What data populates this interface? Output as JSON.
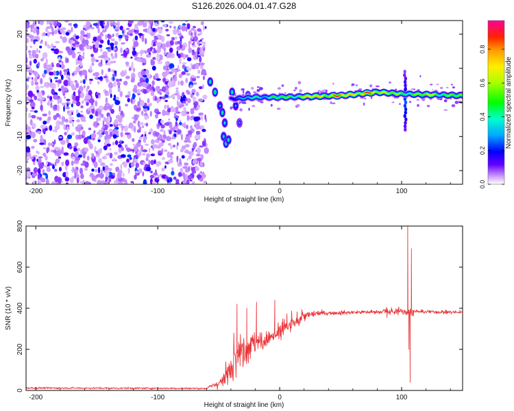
{
  "title": "S126.2026.004.01.47.G28",
  "chart_data": [
    {
      "type": "heatmap",
      "name": "spectrogram",
      "xlabel": "Height of straight line (km)",
      "ylabel": "Frequency (Hz)",
      "xlim": [
        -208,
        150
      ],
      "ylim": [
        -24,
        24
      ],
      "xticks": [
        -200,
        -100,
        0,
        100
      ],
      "yticks": [
        -20,
        -10,
        0,
        10,
        20
      ],
      "xtick_labels": [
        "-200",
        "-100",
        "0",
        "100"
      ],
      "ytick_labels": [
        "-20",
        "-10",
        "0",
        "10",
        "20"
      ],
      "colorbar": {
        "label": "Normalized spectral amplitude",
        "range": [
          0.0,
          0.97
        ],
        "ticks": [
          0.0,
          0.2,
          0.4,
          0.6,
          0.8
        ],
        "tick_labels": [
          "0.0",
          "0.2",
          "0.4",
          "0.6",
          "0.8"
        ]
      },
      "features": {
        "noise_region_x": [
          -208,
          -60
        ],
        "noise_amplitude": [
          0.05,
          0.25
        ],
        "blob_track": [
          {
            "x": -57,
            "f": 6,
            "a": 0.3
          },
          {
            "x": -53,
            "f": 3,
            "a": 0.35
          },
          {
            "x": -49,
            "f": -1,
            "a": 0.2
          },
          {
            "x": -47,
            "f": -3,
            "a": 0.3
          },
          {
            "x": -45,
            "f": -6,
            "a": 0.25
          },
          {
            "x": -46,
            "f": -10,
            "a": 0.25
          },
          {
            "x": -44,
            "f": -12,
            "a": 0.3
          },
          {
            "x": -42,
            "f": -11,
            "a": 0.28
          },
          {
            "x": -39,
            "f": 3,
            "a": 0.3
          },
          {
            "x": -36,
            "f": -1,
            "a": 0.2
          },
          {
            "x": -33,
            "f": -6,
            "a": 0.15
          },
          {
            "x": -30,
            "f": 1,
            "a": 0.45
          },
          {
            "x": -26,
            "f": 2,
            "a": 0.4
          }
        ],
        "main_line": [
          {
            "x": -40,
            "f": 1.0
          },
          {
            "x": -20,
            "f": 1.5
          },
          {
            "x": 0,
            "f": 1.5
          },
          {
            "x": 50,
            "f": 2.0
          },
          {
            "x": 80,
            "f": 3.0
          },
          {
            "x": 100,
            "f": 2.5
          },
          {
            "x": 150,
            "f": 2.0
          }
        ],
        "main_line_amplitude": [
          {
            "x": -40,
            "a": 0.3
          },
          {
            "x": -10,
            "a": 0.5
          },
          {
            "x": 10,
            "a": 0.6
          },
          {
            "x": 30,
            "a": 0.85
          },
          {
            "x": 60,
            "a": 0.9
          },
          {
            "x": 90,
            "a": 0.8
          },
          {
            "x": 100,
            "a": 0.5
          },
          {
            "x": 110,
            "a": 0.7
          },
          {
            "x": 150,
            "a": 0.6
          }
        ],
        "vertical_spike": {
          "x": 103,
          "f_range": [
            -8,
            9
          ],
          "a": 0.25
        }
      }
    },
    {
      "type": "line",
      "name": "snr",
      "xlabel": "Height of straight line (km)",
      "ylabel": "SNR (10 * v/v)",
      "xlim": [
        -208,
        150
      ],
      "ylim": [
        0,
        800
      ],
      "xticks": [
        -200,
        -100,
        0,
        100
      ],
      "yticks": [
        0,
        200,
        400,
        600,
        800
      ],
      "xtick_labels": [
        "-200",
        "-100",
        "0",
        "100"
      ],
      "ytick_labels": [
        "0",
        "200",
        "400",
        "600",
        "800"
      ],
      "series": [
        {
          "name": "SNR",
          "color": "#e8373a",
          "baseline": [
            {
              "x": -208,
              "y": 12
            },
            {
              "x": -60,
              "y": 10
            },
            {
              "x": -45,
              "y": 50
            },
            {
              "x": -35,
              "y": 180
            },
            {
              "x": -20,
              "y": 230
            },
            {
              "x": -5,
              "y": 260
            },
            {
              "x": 10,
              "y": 320
            },
            {
              "x": 20,
              "y": 360
            },
            {
              "x": 30,
              "y": 375
            },
            {
              "x": 60,
              "y": 380
            },
            {
              "x": 100,
              "y": 385
            },
            {
              "x": 150,
              "y": 380
            }
          ],
          "noise": [
            {
              "x": -208,
              "n": 5
            },
            {
              "x": -60,
              "n": 5
            },
            {
              "x": -45,
              "n": 40
            },
            {
              "x": -35,
              "n": 110
            },
            {
              "x": -15,
              "n": 60
            },
            {
              "x": 0,
              "n": 45
            },
            {
              "x": 20,
              "n": 25
            },
            {
              "x": 40,
              "n": 12
            },
            {
              "x": 150,
              "n": 10
            }
          ],
          "spikes": [
            {
              "x": -35,
              "y": 420
            },
            {
              "x": -27,
              "y": 400
            },
            {
              "x": -19,
              "y": 430
            },
            {
              "x": -4,
              "y": 440
            },
            {
              "x": 88,
              "y": 355
            },
            {
              "x": 105,
              "y": 800
            },
            {
              "x": 106,
              "y": 200
            },
            {
              "x": 107,
              "y": 40
            },
            {
              "x": 108,
              "y": 690
            }
          ]
        }
      ]
    }
  ]
}
